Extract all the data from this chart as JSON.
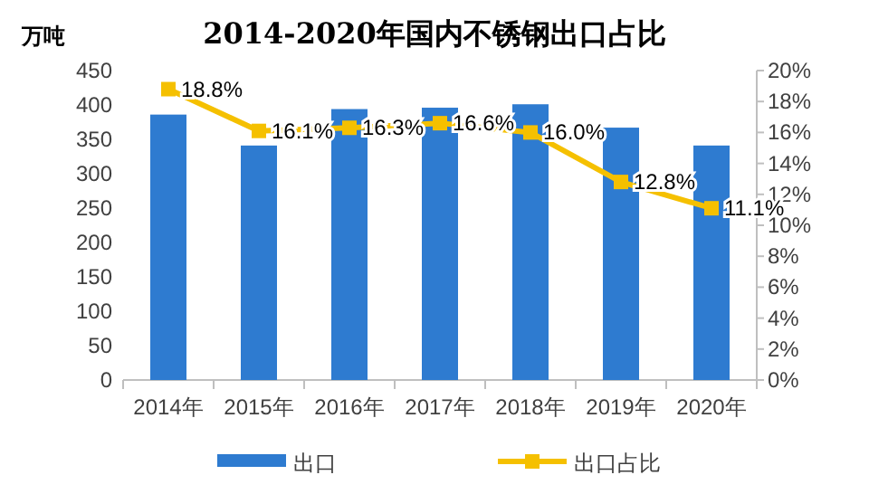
{
  "chart_data": {
    "type": "bar",
    "title": "2014-2020年国内不锈钢出口占比",
    "ylabel": "万吨",
    "categories": [
      "2014年",
      "2015年",
      "2016年",
      "2017年",
      "2018年",
      "2019年",
      "2020年"
    ],
    "series": [
      {
        "name": "出口",
        "color": "#2e7bd0",
        "values": [
          386,
          341,
          394,
          396,
          401,
          367,
          341
        ]
      },
      {
        "name": "出口占比",
        "type": "line",
        "axis": "y2",
        "color": "#f5c000",
        "values": [
          18.8,
          16.1,
          16.3,
          16.6,
          16.0,
          12.8,
          11.1
        ],
        "value_labels": [
          "18.8%",
          "16.1%",
          "16.3%",
          "16.6%",
          "16.0%",
          "12.8%",
          "11.1%"
        ]
      }
    ],
    "ylim": [
      0,
      450
    ],
    "yticks": [
      0,
      50,
      100,
      150,
      200,
      250,
      300,
      350,
      400,
      450
    ],
    "y2lim": [
      0,
      20
    ],
    "y2ticks": [
      {
        "value": 0,
        "label": "0%"
      },
      {
        "value": 2,
        "label": "2%"
      },
      {
        "value": 4,
        "label": "4%"
      },
      {
        "value": 6,
        "label": "6%"
      },
      {
        "value": 8,
        "label": "8%"
      },
      {
        "value": 10,
        "label": "10%"
      },
      {
        "value": 12,
        "label": "12%"
      },
      {
        "value": 14,
        "label": "14%"
      },
      {
        "value": 16,
        "label": "16%"
      },
      {
        "value": 18,
        "label": "18%"
      },
      {
        "value": 20,
        "label": "20%"
      }
    ],
    "legend": "bottom",
    "marker": "square",
    "grid": false
  }
}
